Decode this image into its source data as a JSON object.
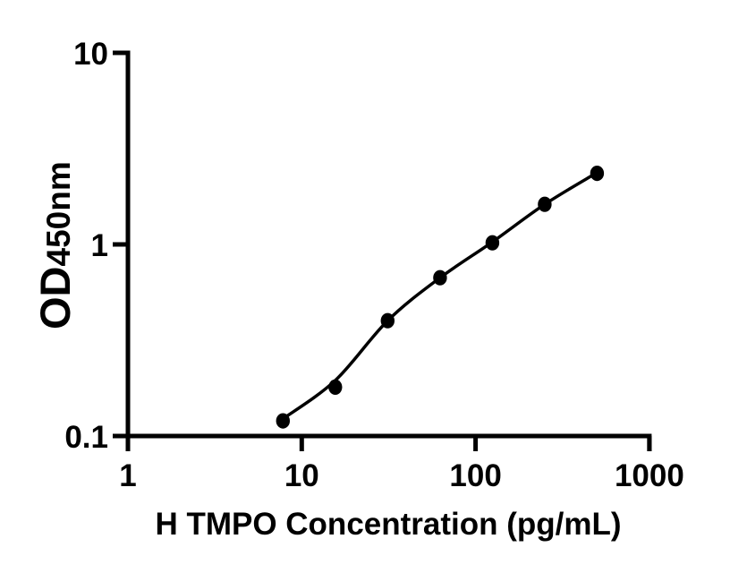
{
  "chart_data": {
    "type": "scatter",
    "title": "",
    "xlabel": "H TMPO Concentration (pg/mL)",
    "ylabel": "OD450nm",
    "ylabel_parts": {
      "big": "OD",
      "small": "450nm"
    },
    "x_scale": "log",
    "y_scale": "log",
    "xlim": [
      1,
      1000
    ],
    "ylim": [
      0.1,
      10
    ],
    "x_ticks": {
      "values": [
        1,
        10,
        100,
        1000
      ],
      "labels": [
        "1",
        "10",
        "100",
        "1000"
      ]
    },
    "y_ticks": {
      "values": [
        0.1,
        1,
        10
      ],
      "labels": [
        "0.1",
        "1",
        "10"
      ]
    },
    "grid": false,
    "legend": false,
    "series": [
      {
        "name": "standard-points",
        "role": "markers",
        "marker": "filled-circle",
        "color": "#000000",
        "x": [
          7.8,
          15.6,
          31.2,
          62.5,
          125,
          250,
          500
        ],
        "y": [
          0.12,
          0.18,
          0.4,
          0.67,
          1.02,
          1.62,
          2.35
        ]
      },
      {
        "name": "fit-curve",
        "role": "line",
        "color": "#000000",
        "x": [
          7.8,
          15.6,
          31.2,
          62.5,
          125,
          250,
          500
        ],
        "y": [
          0.123,
          0.195,
          0.4,
          0.67,
          1.03,
          1.62,
          2.37
        ]
      }
    ]
  },
  "colors": {
    "background": "#ffffff",
    "axis": "#000000",
    "marker": "#000000",
    "curve": "#000000"
  }
}
